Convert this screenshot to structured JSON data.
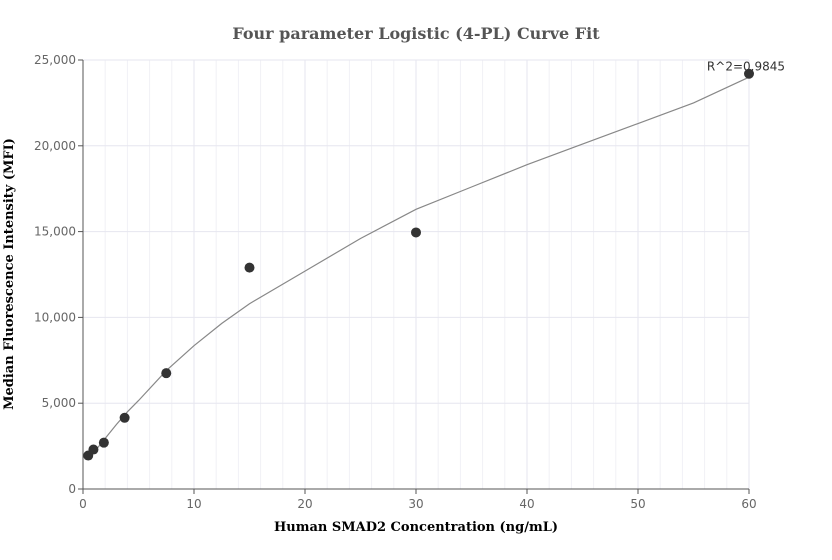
{
  "chart_data": {
    "type": "scatter",
    "title": "Four parameter Logistic (4-PL) Curve Fit",
    "xlabel": "Human SMAD2 Concentration (ng/mL)",
    "ylabel": "Median Fluorescence Intensity (MFI)",
    "xlim": [
      0,
      60
    ],
    "ylim": [
      0,
      25000
    ],
    "x_ticks": [
      0,
      10,
      20,
      30,
      40,
      50,
      60
    ],
    "x_tick_labels": [
      "0",
      "10",
      "20",
      "30",
      "40",
      "50",
      "60"
    ],
    "y_ticks": [
      0,
      5000,
      10000,
      15000,
      20000,
      25000
    ],
    "y_tick_labels": [
      "0",
      "5,000",
      "10,000",
      "15,000",
      "20,000",
      "25,000"
    ],
    "grid": true,
    "points": [
      {
        "x": 0.47,
        "y": 1950
      },
      {
        "x": 0.94,
        "y": 2300
      },
      {
        "x": 1.88,
        "y": 2700
      },
      {
        "x": 3.75,
        "y": 4150
      },
      {
        "x": 7.5,
        "y": 6750
      },
      {
        "x": 15,
        "y": 12900
      },
      {
        "x": 30,
        "y": 14950
      },
      {
        "x": 60,
        "y": 24200
      }
    ],
    "fit_curve": [
      {
        "x": 0.47,
        "y": 1700
      },
      {
        "x": 1,
        "y": 2150
      },
      {
        "x": 2,
        "y": 2950
      },
      {
        "x": 3,
        "y": 3750
      },
      {
        "x": 4,
        "y": 4500
      },
      {
        "x": 5,
        "y": 5150
      },
      {
        "x": 7.5,
        "y": 6900
      },
      {
        "x": 10,
        "y": 8350
      },
      {
        "x": 12.5,
        "y": 9650
      },
      {
        "x": 15,
        "y": 10800
      },
      {
        "x": 20,
        "y": 12700
      },
      {
        "x": 25,
        "y": 14600
      },
      {
        "x": 30,
        "y": 16300
      },
      {
        "x": 35,
        "y": 17600
      },
      {
        "x": 40,
        "y": 18900
      },
      {
        "x": 45,
        "y": 20100
      },
      {
        "x": 50,
        "y": 21300
      },
      {
        "x": 55,
        "y": 22500
      },
      {
        "x": 60,
        "y": 24000
      }
    ],
    "annotation": "R^2=0.9845",
    "colors": {
      "points": "#333333",
      "fit_line": "#888888"
    }
  }
}
